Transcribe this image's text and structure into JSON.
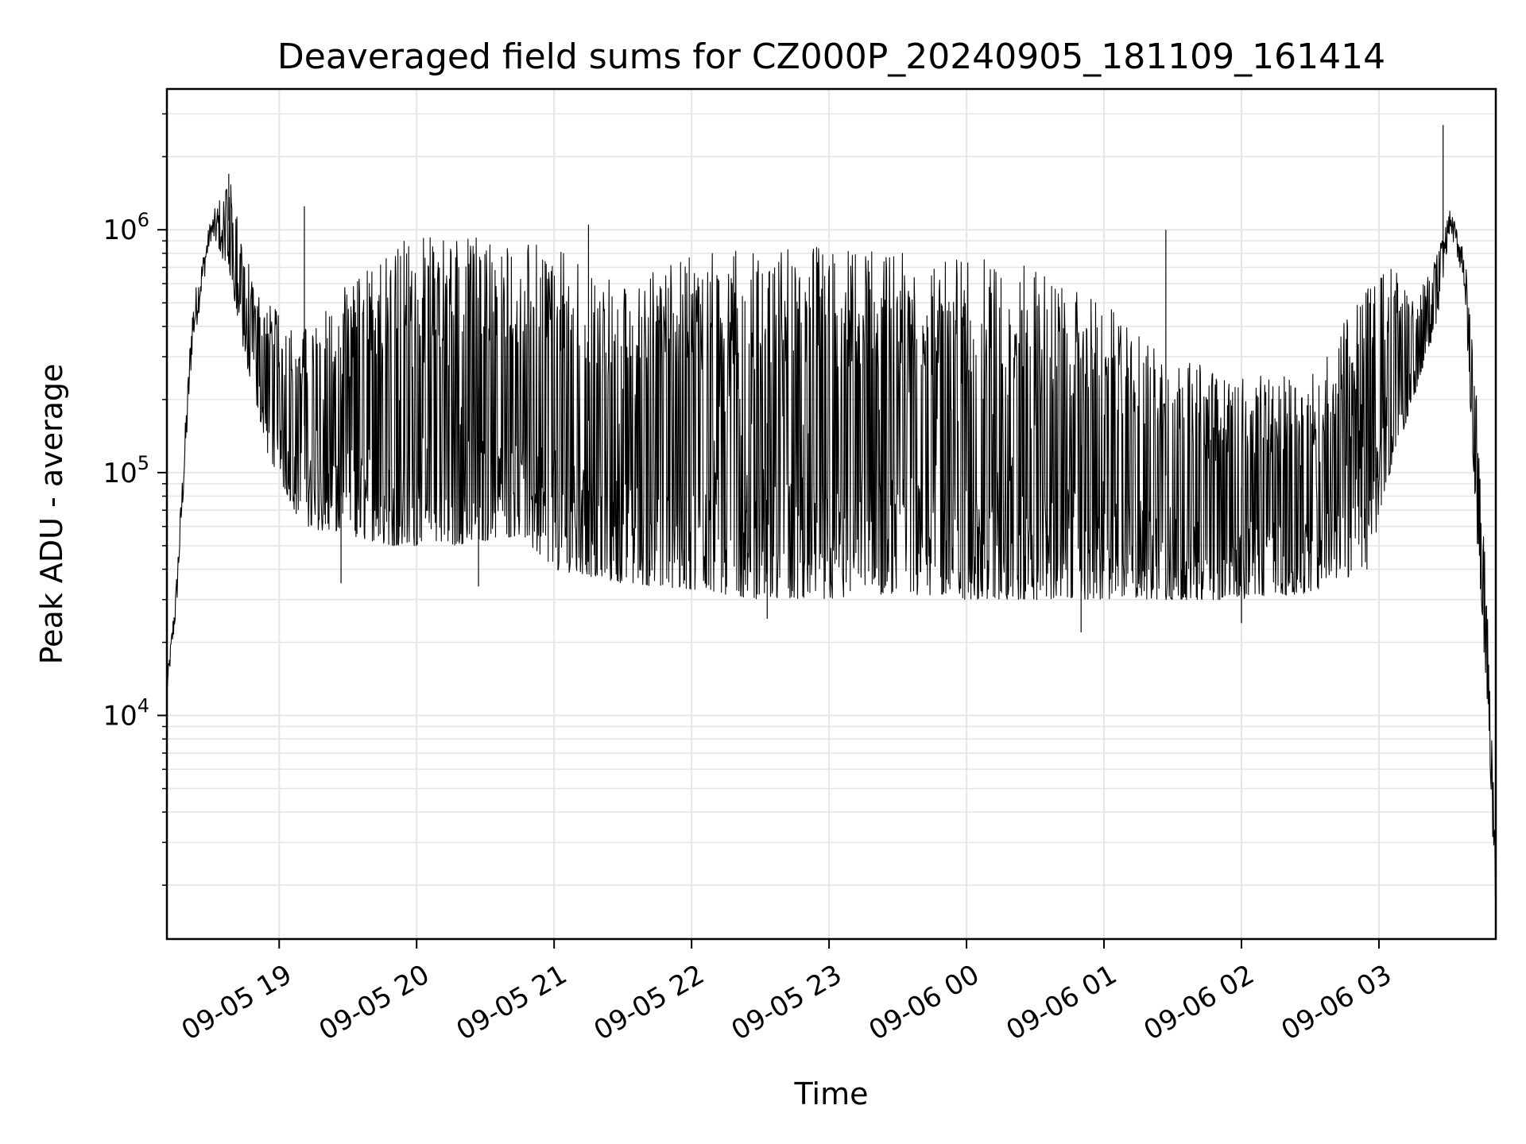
{
  "chart_data": {
    "type": "line",
    "title": "Deaveraged field sums for CZ000P_20240905_181109_161414",
    "xlabel": "Time",
    "ylabel": "Peak ADU - average",
    "x_range": [
      "2024-09-05 18:11",
      "2024-09-06 03:51"
    ],
    "ylim": [
      1200,
      3800000
    ],
    "y_scale": "log",
    "grid": "major and minor",
    "line_color": "#000000",
    "grid_color": "#e6e6e6",
    "x_ticks": [
      {
        "t": "2024-09-05 19:00",
        "label": "09-05 19"
      },
      {
        "t": "2024-09-05 20:00",
        "label": "09-05 20"
      },
      {
        "t": "2024-09-05 21:00",
        "label": "09-05 21"
      },
      {
        "t": "2024-09-05 22:00",
        "label": "09-05 22"
      },
      {
        "t": "2024-09-05 23:00",
        "label": "09-05 23"
      },
      {
        "t": "2024-09-06 00:00",
        "label": "09-06 00"
      },
      {
        "t": "2024-09-06 01:00",
        "label": "09-06 01"
      },
      {
        "t": "2024-09-06 02:00",
        "label": "09-06 02"
      },
      {
        "t": "2024-09-06 03:00",
        "label": "09-06 03"
      }
    ],
    "y_ticks": [
      {
        "value": 10000,
        "base": "10",
        "exp": "4"
      },
      {
        "value": 100000,
        "base": "10",
        "exp": "5"
      },
      {
        "value": 1000000,
        "base": "10",
        "exp": "6"
      }
    ],
    "envelope": [
      {
        "t": "2024-09-05 18:11",
        "low": 12000,
        "high": 14000
      },
      {
        "t": "2024-09-05 18:15",
        "low": 25000,
        "high": 35000
      },
      {
        "t": "2024-09-05 18:22",
        "low": 300000,
        "high": 500000
      },
      {
        "t": "2024-09-05 18:30",
        "low": 900000,
        "high": 1100000
      },
      {
        "t": "2024-09-05 18:38",
        "low": 700000,
        "high": 1700000
      },
      {
        "t": "2024-09-05 18:45",
        "low": 300000,
        "high": 800000
      },
      {
        "t": "2024-09-05 18:55",
        "low": 120000,
        "high": 500000
      },
      {
        "t": "2024-09-05 19:10",
        "low": 60000,
        "high": 400000
      },
      {
        "t": "2024-09-05 19:30",
        "low": 55000,
        "high": 600000
      },
      {
        "t": "2024-09-05 19:50",
        "low": 50000,
        "high": 900000
      },
      {
        "t": "2024-09-05 20:15",
        "low": 50000,
        "high": 1000000
      },
      {
        "t": "2024-09-05 20:45",
        "low": 55000,
        "high": 900000
      },
      {
        "t": "2024-09-05 21:00",
        "low": 40000,
        "high": 850000
      },
      {
        "t": "2024-09-05 21:30",
        "low": 35000,
        "high": 600000
      },
      {
        "t": "2024-09-05 22:00",
        "low": 33000,
        "high": 800000
      },
      {
        "t": "2024-09-05 22:30",
        "low": 30000,
        "high": 850000
      },
      {
        "t": "2024-09-05 23:00",
        "low": 30000,
        "high": 850000
      },
      {
        "t": "2024-09-05 23:30",
        "low": 32000,
        "high": 800000
      },
      {
        "t": "2024-09-06 00:00",
        "low": 30000,
        "high": 800000
      },
      {
        "t": "2024-09-06 00:30",
        "low": 30000,
        "high": 700000
      },
      {
        "t": "2024-09-06 01:00",
        "low": 30000,
        "high": 500000
      },
      {
        "t": "2024-09-06 01:30",
        "low": 30000,
        "high": 300000
      },
      {
        "t": "2024-09-06 02:00",
        "low": 30000,
        "high": 250000
      },
      {
        "t": "2024-09-06 02:30",
        "low": 32000,
        "high": 250000
      },
      {
        "t": "2024-09-06 02:55",
        "low": 40000,
        "high": 600000
      },
      {
        "t": "2024-09-06 03:05",
        "low": 100000,
        "high": 800000
      },
      {
        "t": "2024-09-06 03:15",
        "low": 200000,
        "high": 500000
      },
      {
        "t": "2024-09-06 03:25",
        "low": 400000,
        "high": 800000
      },
      {
        "t": "2024-09-06 03:31",
        "low": 1000000,
        "high": 1200000
      },
      {
        "t": "2024-09-06 03:37",
        "low": 600000,
        "high": 900000
      },
      {
        "t": "2024-09-06 03:43",
        "low": 50000,
        "high": 200000
      },
      {
        "t": "2024-09-06 03:48",
        "low": 8000,
        "high": 20000
      },
      {
        "t": "2024-09-06 03:51",
        "low": 1500,
        "high": 2500
      }
    ],
    "spikes": [
      {
        "t": "2024-09-05 18:38",
        "value": 1700000
      },
      {
        "t": "2024-09-05 19:11",
        "value": 1250000
      },
      {
        "t": "2024-09-05 21:15",
        "value": 1050000
      },
      {
        "t": "2024-09-06 01:27",
        "value": 1000000
      },
      {
        "t": "2024-09-06 03:28",
        "value": 2700000
      },
      {
        "t": "2024-09-05 19:27",
        "value": 35000
      },
      {
        "t": "2024-09-05 20:27",
        "value": 34000
      },
      {
        "t": "2024-09-05 22:33",
        "value": 25000
      },
      {
        "t": "2024-09-06 00:50",
        "value": 22000
      },
      {
        "t": "2024-09-06 02:00",
        "value": 24000
      }
    ]
  }
}
